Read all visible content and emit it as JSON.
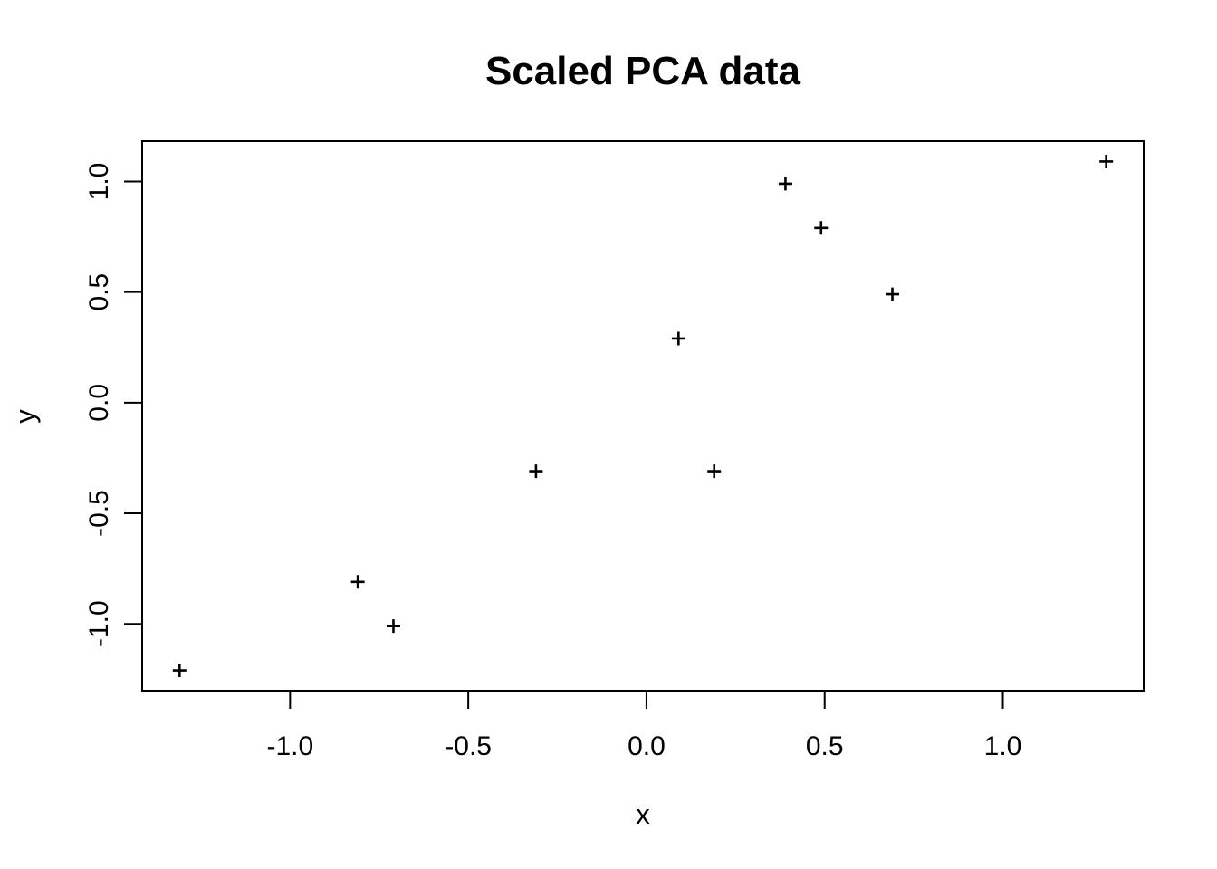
{
  "chart_data": {
    "type": "scatter",
    "title": "Scaled PCA data",
    "xlabel": "x",
    "ylabel": "y",
    "marker": "plus-cross",
    "grid": false,
    "legend": null,
    "colors": {
      "foreground": "#000000",
      "background": "#ffffff"
    },
    "xlim": [
      -1.415,
      1.395
    ],
    "ylim": [
      -1.302,
      1.182
    ],
    "x_ticks": {
      "values": [
        -1.0,
        -0.5,
        0.0,
        0.5,
        1.0
      ],
      "labels": [
        "-1.0",
        "-0.5",
        "0.0",
        "0.5",
        "1.0"
      ]
    },
    "y_ticks": {
      "values": [
        -1.0,
        -0.5,
        0.0,
        0.5,
        1.0
      ],
      "labels": [
        "-1.0",
        "-0.5",
        "0.0",
        "0.5",
        "1.0"
      ]
    },
    "points": [
      {
        "x": 0.69,
        "y": 0.49
      },
      {
        "x": -1.31,
        "y": -1.21
      },
      {
        "x": 0.39,
        "y": 0.99
      },
      {
        "x": 0.09,
        "y": 0.29
      },
      {
        "x": 1.29,
        "y": 1.09
      },
      {
        "x": 0.49,
        "y": 0.79
      },
      {
        "x": 0.19,
        "y": -0.31
      },
      {
        "x": -0.81,
        "y": -0.81
      },
      {
        "x": -0.31,
        "y": -0.31
      },
      {
        "x": -0.71,
        "y": -1.01
      }
    ]
  }
}
